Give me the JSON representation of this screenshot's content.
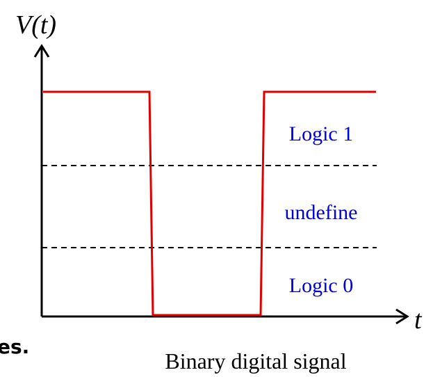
{
  "diagram": {
    "y_axis_label": "V(t)",
    "x_axis_label": "t",
    "regions": [
      "Logic 1",
      "undefine",
      "Logic 0"
    ],
    "caption": "Binary digital signal",
    "side_text": "es."
  }
}
